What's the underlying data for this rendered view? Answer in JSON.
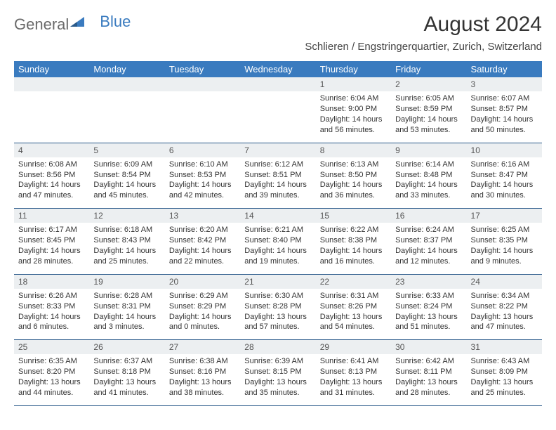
{
  "brand": {
    "part1": "General",
    "part2": "Blue"
  },
  "title": "August 2024",
  "location": "Schlieren / Engstringerquartier, Zurich, Switzerland",
  "colors": {
    "header_bg": "#3a7bbf",
    "header_text": "#ffffff",
    "daynum_bg": "#eceff1",
    "sep": "#2a5a8a",
    "body_text": "#333333"
  },
  "dayHeaders": [
    "Sunday",
    "Monday",
    "Tuesday",
    "Wednesday",
    "Thursday",
    "Friday",
    "Saturday"
  ],
  "weeks": [
    [
      null,
      null,
      null,
      null,
      {
        "n": "1",
        "sunrise": "6:04 AM",
        "sunset": "9:00 PM",
        "dl": "14 hours and 56 minutes."
      },
      {
        "n": "2",
        "sunrise": "6:05 AM",
        "sunset": "8:59 PM",
        "dl": "14 hours and 53 minutes."
      },
      {
        "n": "3",
        "sunrise": "6:07 AM",
        "sunset": "8:57 PM",
        "dl": "14 hours and 50 minutes."
      }
    ],
    [
      {
        "n": "4",
        "sunrise": "6:08 AM",
        "sunset": "8:56 PM",
        "dl": "14 hours and 47 minutes."
      },
      {
        "n": "5",
        "sunrise": "6:09 AM",
        "sunset": "8:54 PM",
        "dl": "14 hours and 45 minutes."
      },
      {
        "n": "6",
        "sunrise": "6:10 AM",
        "sunset": "8:53 PM",
        "dl": "14 hours and 42 minutes."
      },
      {
        "n": "7",
        "sunrise": "6:12 AM",
        "sunset": "8:51 PM",
        "dl": "14 hours and 39 minutes."
      },
      {
        "n": "8",
        "sunrise": "6:13 AM",
        "sunset": "8:50 PM",
        "dl": "14 hours and 36 minutes."
      },
      {
        "n": "9",
        "sunrise": "6:14 AM",
        "sunset": "8:48 PM",
        "dl": "14 hours and 33 minutes."
      },
      {
        "n": "10",
        "sunrise": "6:16 AM",
        "sunset": "8:47 PM",
        "dl": "14 hours and 30 minutes."
      }
    ],
    [
      {
        "n": "11",
        "sunrise": "6:17 AM",
        "sunset": "8:45 PM",
        "dl": "14 hours and 28 minutes."
      },
      {
        "n": "12",
        "sunrise": "6:18 AM",
        "sunset": "8:43 PM",
        "dl": "14 hours and 25 minutes."
      },
      {
        "n": "13",
        "sunrise": "6:20 AM",
        "sunset": "8:42 PM",
        "dl": "14 hours and 22 minutes."
      },
      {
        "n": "14",
        "sunrise": "6:21 AM",
        "sunset": "8:40 PM",
        "dl": "14 hours and 19 minutes."
      },
      {
        "n": "15",
        "sunrise": "6:22 AM",
        "sunset": "8:38 PM",
        "dl": "14 hours and 16 minutes."
      },
      {
        "n": "16",
        "sunrise": "6:24 AM",
        "sunset": "8:37 PM",
        "dl": "14 hours and 12 minutes."
      },
      {
        "n": "17",
        "sunrise": "6:25 AM",
        "sunset": "8:35 PM",
        "dl": "14 hours and 9 minutes."
      }
    ],
    [
      {
        "n": "18",
        "sunrise": "6:26 AM",
        "sunset": "8:33 PM",
        "dl": "14 hours and 6 minutes."
      },
      {
        "n": "19",
        "sunrise": "6:28 AM",
        "sunset": "8:31 PM",
        "dl": "14 hours and 3 minutes."
      },
      {
        "n": "20",
        "sunrise": "6:29 AM",
        "sunset": "8:29 PM",
        "dl": "14 hours and 0 minutes."
      },
      {
        "n": "21",
        "sunrise": "6:30 AM",
        "sunset": "8:28 PM",
        "dl": "13 hours and 57 minutes."
      },
      {
        "n": "22",
        "sunrise": "6:31 AM",
        "sunset": "8:26 PM",
        "dl": "13 hours and 54 minutes."
      },
      {
        "n": "23",
        "sunrise": "6:33 AM",
        "sunset": "8:24 PM",
        "dl": "13 hours and 51 minutes."
      },
      {
        "n": "24",
        "sunrise": "6:34 AM",
        "sunset": "8:22 PM",
        "dl": "13 hours and 47 minutes."
      }
    ],
    [
      {
        "n": "25",
        "sunrise": "6:35 AM",
        "sunset": "8:20 PM",
        "dl": "13 hours and 44 minutes."
      },
      {
        "n": "26",
        "sunrise": "6:37 AM",
        "sunset": "8:18 PM",
        "dl": "13 hours and 41 minutes."
      },
      {
        "n": "27",
        "sunrise": "6:38 AM",
        "sunset": "8:16 PM",
        "dl": "13 hours and 38 minutes."
      },
      {
        "n": "28",
        "sunrise": "6:39 AM",
        "sunset": "8:15 PM",
        "dl": "13 hours and 35 minutes."
      },
      {
        "n": "29",
        "sunrise": "6:41 AM",
        "sunset": "8:13 PM",
        "dl": "13 hours and 31 minutes."
      },
      {
        "n": "30",
        "sunrise": "6:42 AM",
        "sunset": "8:11 PM",
        "dl": "13 hours and 28 minutes."
      },
      {
        "n": "31",
        "sunrise": "6:43 AM",
        "sunset": "8:09 PM",
        "dl": "13 hours and 25 minutes."
      }
    ]
  ],
  "labels": {
    "sunrise": "Sunrise: ",
    "sunset": "Sunset: ",
    "daylight": "Daylight: "
  }
}
